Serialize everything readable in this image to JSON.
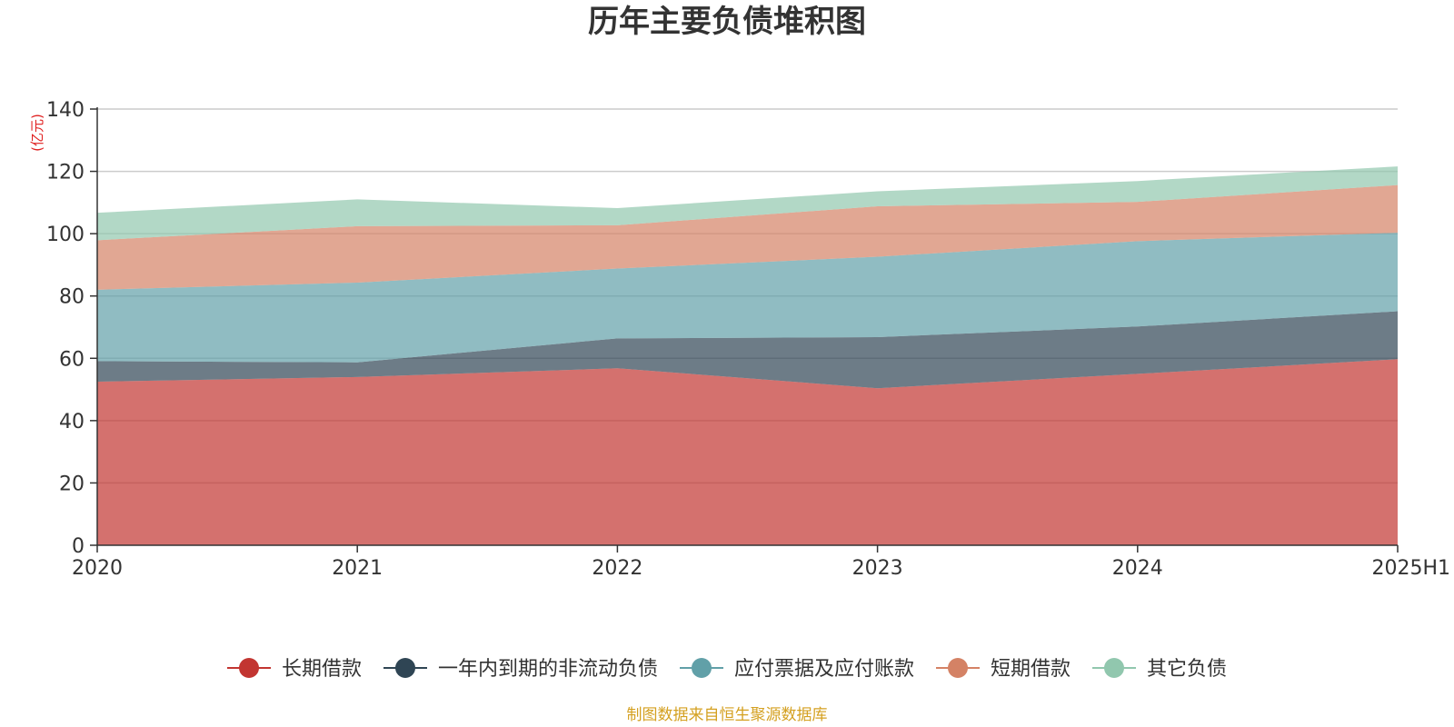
{
  "chart_data": {
    "type": "area",
    "stacked": true,
    "title": "历年主要负债堆积图",
    "ylabel": "(亿元)",
    "ylabel_color": "#e02020",
    "x": [
      "2020",
      "2021",
      "2022",
      "2023",
      "2024",
      "2025H1"
    ],
    "ylim": [
      0,
      140
    ],
    "yticks": [
      "0",
      "20",
      "40",
      "60",
      "80",
      "100",
      "120",
      "140"
    ],
    "grid": true,
    "legend_position": "bottom",
    "series": [
      {
        "name": "长期借款",
        "color": "#c23531",
        "values": [
          52.5,
          54.0,
          56.8,
          50.4,
          55.0,
          59.7
        ]
      },
      {
        "name": "一年内到期的非流动负债",
        "color": "#2f4554",
        "values": [
          6.6,
          4.7,
          9.6,
          16.4,
          15.2,
          15.4
        ]
      },
      {
        "name": "应付票据及应付账款",
        "color": "#61a0a8",
        "values": [
          22.9,
          25.6,
          22.4,
          25.8,
          27.4,
          25.2
        ]
      },
      {
        "name": "短期借款",
        "color": "#d48265",
        "values": [
          15.9,
          18.1,
          13.9,
          16.2,
          12.6,
          15.3
        ]
      },
      {
        "name": "其它负债",
        "color": "#91c7ae",
        "values": [
          8.8,
          8.6,
          5.5,
          4.8,
          6.7,
          6.0
        ]
      }
    ],
    "source_note": "制图数据来自恒生聚源数据库",
    "source_color": "#d4a020"
  }
}
